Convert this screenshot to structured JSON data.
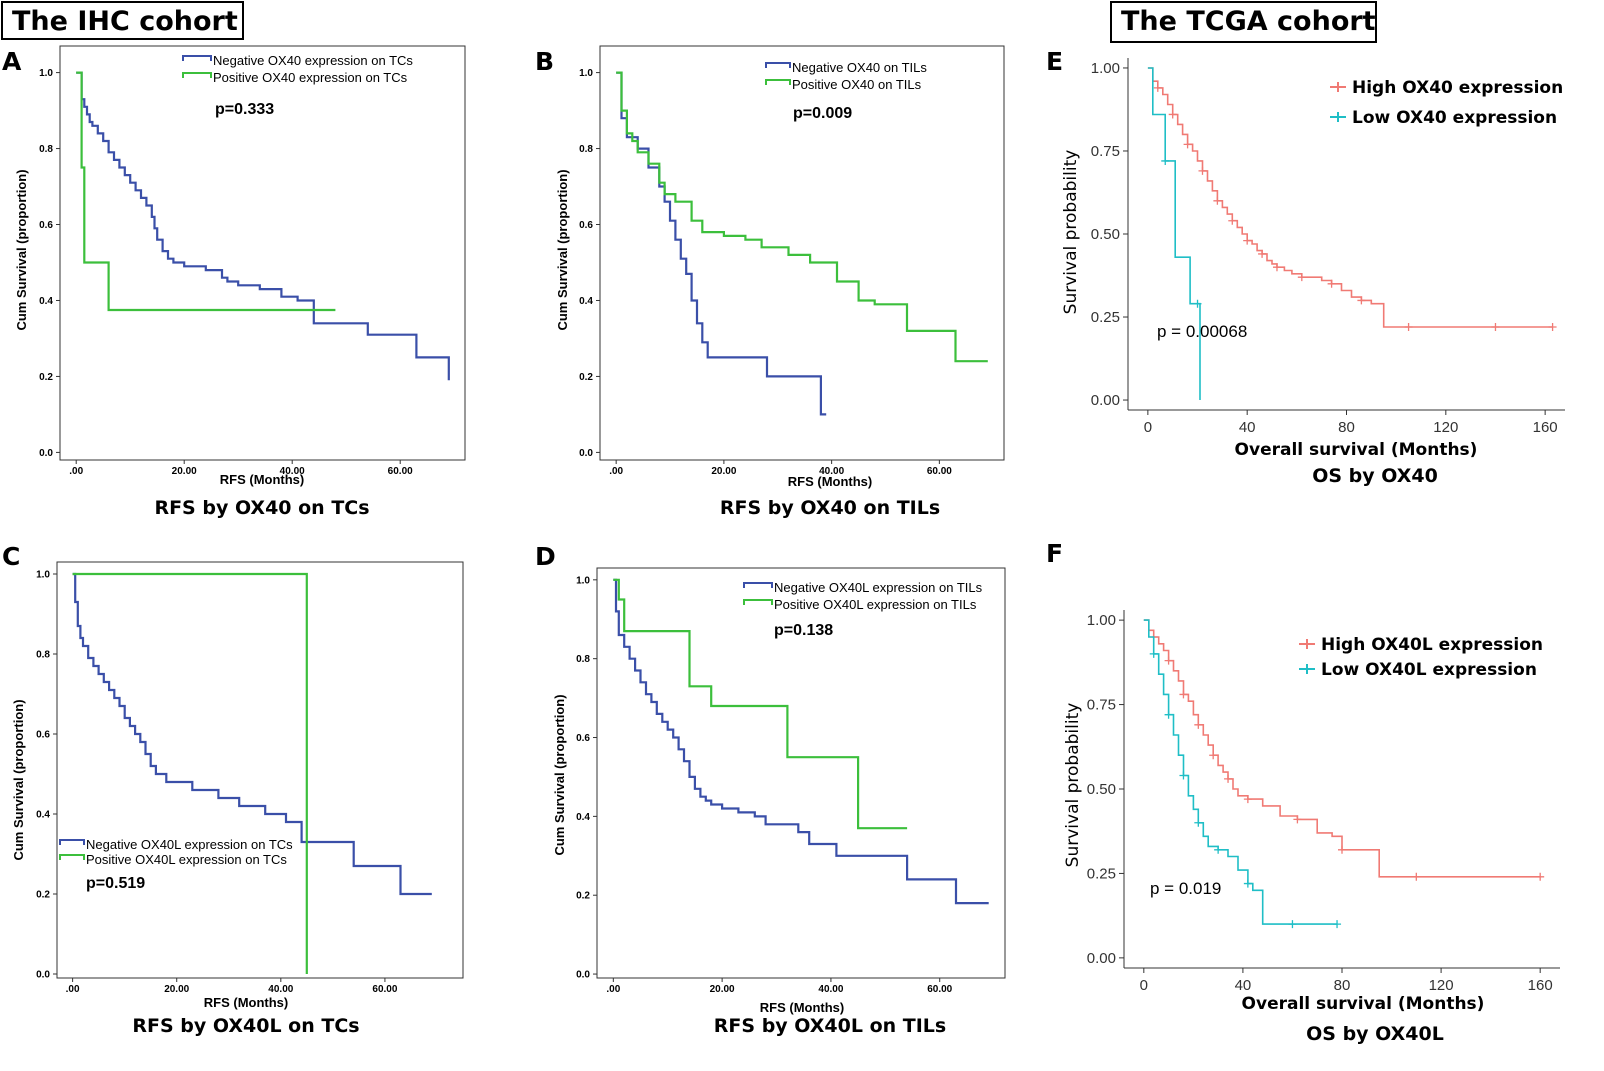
{
  "headers": {
    "ihc": "The IHC cohort",
    "tcga": "The TCGA cohort"
  },
  "colors": {
    "negative": "#3a4fa8",
    "positive": "#3cbf3c",
    "high": "#f07a74",
    "low": "#1fbec6"
  },
  "chart_data": [
    {
      "id": "A",
      "type": "line",
      "style": "spss",
      "title": "RFS by OX40 on TCs",
      "xlabel": "RFS (Months)",
      "ylabel": "Cum Survival (proportion)",
      "xlim": [
        -3,
        72
      ],
      "ylim": [
        -0.02,
        1.07
      ],
      "xticks": [
        0,
        20,
        40,
        60
      ],
      "xtick_labels": [
        ".00",
        "20.00",
        "40.00",
        "60.00"
      ],
      "yticks": [
        0,
        0.2,
        0.4,
        0.6,
        0.8,
        1.0
      ],
      "ytick_labels": [
        "0.0",
        "0.2",
        "0.4",
        "0.6",
        "0.8",
        "1.0"
      ],
      "legend_position": "top-center",
      "p_value": "p=0.333",
      "series": [
        {
          "name": "Negative OX40 expression on TCs",
          "color": "negative",
          "x": [
            0,
            1,
            1.5,
            2,
            2.5,
            3,
            4,
            5,
            6,
            7,
            8,
            9,
            10,
            11,
            12,
            13,
            14,
            14.5,
            15,
            16,
            17,
            18,
            20,
            24,
            27,
            28,
            30,
            34,
            38,
            41,
            44,
            54,
            63,
            69
          ],
          "y": [
            1.0,
            0.93,
            0.91,
            0.89,
            0.87,
            0.86,
            0.84,
            0.82,
            0.79,
            0.77,
            0.75,
            0.73,
            0.71,
            0.69,
            0.67,
            0.65,
            0.62,
            0.59,
            0.56,
            0.53,
            0.51,
            0.5,
            0.49,
            0.48,
            0.46,
            0.45,
            0.44,
            0.43,
            0.41,
            0.4,
            0.34,
            0.31,
            0.25,
            0.19
          ]
        },
        {
          "name": "Positive OX40 expression on TCs",
          "color": "positive",
          "x": [
            0,
            1,
            1.5,
            6,
            48
          ],
          "y": [
            1.0,
            0.75,
            0.5,
            0.375,
            0.375
          ]
        }
      ]
    },
    {
      "id": "B",
      "type": "line",
      "style": "spss",
      "title": "RFS by OX40 on TILs",
      "xlabel": "RFS (Months)",
      "ylabel": "Cum Survival (proportion)",
      "xlim": [
        -3,
        72
      ],
      "ylim": [
        -0.02,
        1.07
      ],
      "xticks": [
        0,
        20,
        40,
        60
      ],
      "xtick_labels": [
        ".00",
        "20.00",
        "40.00",
        "60.00"
      ],
      "yticks": [
        0,
        0.2,
        0.4,
        0.6,
        0.8,
        1.0
      ],
      "ytick_labels": [
        "0.0",
        "0.2",
        "0.4",
        "0.6",
        "0.8",
        "1.0"
      ],
      "legend_position": "top-center",
      "p_value": "p=0.009",
      "series": [
        {
          "name": "Negative OX40 on TILs",
          "color": "negative",
          "x": [
            0,
            1,
            2,
            4,
            6,
            8,
            9,
            10,
            11,
            12,
            13,
            14,
            15,
            16,
            17,
            18,
            28,
            38,
            39
          ],
          "y": [
            1.0,
            0.88,
            0.83,
            0.8,
            0.75,
            0.7,
            0.66,
            0.61,
            0.56,
            0.51,
            0.47,
            0.4,
            0.34,
            0.29,
            0.25,
            0.25,
            0.2,
            0.1,
            0.1
          ]
        },
        {
          "name": "Positive OX40 on TILs",
          "color": "positive",
          "x": [
            0,
            1,
            2,
            3,
            4,
            6,
            8,
            9,
            11,
            14,
            16,
            20,
            24,
            27,
            32,
            36,
            41,
            45,
            48,
            54,
            63,
            69
          ],
          "y": [
            1.0,
            0.9,
            0.84,
            0.82,
            0.79,
            0.76,
            0.71,
            0.68,
            0.66,
            0.61,
            0.58,
            0.57,
            0.56,
            0.54,
            0.52,
            0.5,
            0.45,
            0.4,
            0.39,
            0.32,
            0.24,
            0.24
          ]
        }
      ]
    },
    {
      "id": "C",
      "type": "line",
      "style": "spss",
      "title": "RFS by OX40L on TCs",
      "xlabel": "RFS (Months)",
      "ylabel": "Cum Survival (proportion)",
      "xlim": [
        -3,
        75
      ],
      "ylim": [
        -0.01,
        1.03
      ],
      "xticks": [
        0,
        20,
        40,
        60
      ],
      "xtick_labels": [
        ".00",
        "20.00",
        "40.00",
        "60.00"
      ],
      "yticks": [
        0,
        0.2,
        0.4,
        0.6,
        0.8,
        1.0
      ],
      "ytick_labels": [
        "0.0",
        "0.2",
        "0.4",
        "0.6",
        "0.8",
        "1.0"
      ],
      "legend_position": "bottom-left",
      "p_value": "p=0.519",
      "series": [
        {
          "name": "Negative OX40L expression on TCs",
          "color": "negative",
          "x": [
            0,
            0.5,
            1,
            1.5,
            2,
            3,
            4,
            5,
            6,
            7,
            8,
            9,
            10,
            11,
            12,
            13,
            14,
            15,
            16,
            18,
            23,
            28,
            32,
            37,
            41,
            44,
            54,
            63,
            69
          ],
          "y": [
            1.0,
            0.93,
            0.87,
            0.84,
            0.82,
            0.79,
            0.77,
            0.75,
            0.73,
            0.71,
            0.69,
            0.67,
            0.64,
            0.62,
            0.6,
            0.58,
            0.55,
            0.52,
            0.5,
            0.48,
            0.46,
            0.44,
            0.42,
            0.4,
            0.38,
            0.33,
            0.27,
            0.2,
            0.2
          ]
        },
        {
          "name": "Positive OX40L expression on TCs",
          "color": "positive",
          "x": [
            0,
            45,
            45
          ],
          "y": [
            1.0,
            1.0,
            0.0
          ]
        }
      ]
    },
    {
      "id": "D",
      "type": "line",
      "style": "spss",
      "title": "RFS by OX40L on TILs",
      "xlabel": "RFS (Months)",
      "ylabel": "Cum Survival (proportion)",
      "xlim": [
        -3,
        72
      ],
      "ylim": [
        -0.01,
        1.03
      ],
      "xticks": [
        0,
        20,
        40,
        60
      ],
      "xtick_labels": [
        ".00",
        "20.00",
        "40.00",
        "60.00"
      ],
      "yticks": [
        0,
        0.2,
        0.4,
        0.6,
        0.8,
        1.0
      ],
      "ytick_labels": [
        "0.0",
        "0.2",
        "0.4",
        "0.6",
        "0.8",
        "1.0"
      ],
      "legend_position": "top-right",
      "p_value": "p=0.138",
      "series": [
        {
          "name": "Negative OX40L expression on TILs",
          "color": "negative",
          "x": [
            0,
            0.5,
            1,
            2,
            3,
            4,
            5,
            6,
            7,
            8,
            9,
            10,
            11,
            12,
            13,
            14,
            15,
            16,
            17,
            18,
            20,
            23,
            26,
            28,
            32,
            34,
            36,
            41,
            45,
            48,
            54,
            63,
            69
          ],
          "y": [
            1.0,
            0.92,
            0.86,
            0.83,
            0.8,
            0.77,
            0.74,
            0.71,
            0.69,
            0.66,
            0.64,
            0.62,
            0.6,
            0.57,
            0.54,
            0.5,
            0.47,
            0.45,
            0.44,
            0.43,
            0.42,
            0.41,
            0.4,
            0.38,
            0.38,
            0.36,
            0.33,
            0.3,
            0.3,
            0.3,
            0.24,
            0.18,
            0.18
          ]
        },
        {
          "name": "Positive OX40L expression on TILs",
          "color": "positive",
          "x": [
            0,
            1,
            2,
            8,
            14,
            18,
            32,
            45,
            54
          ],
          "y": [
            1.0,
            0.95,
            0.87,
            0.87,
            0.73,
            0.68,
            0.55,
            0.37,
            0.37
          ]
        }
      ]
    },
    {
      "id": "E",
      "type": "line",
      "style": "r",
      "title": "OS by OX40",
      "xlabel": "Overall survival (Months)",
      "ylabel": "Survival probability",
      "xlim": [
        -8,
        168
      ],
      "ylim": [
        -0.03,
        1.03
      ],
      "xticks": [
        0,
        40,
        80,
        120,
        160
      ],
      "xtick_labels": [
        "0",
        "40",
        "80",
        "120",
        "160"
      ],
      "yticks": [
        0,
        0.25,
        0.5,
        0.75,
        1.0
      ],
      "ytick_labels": [
        "0.00",
        "0.25",
        "0.50",
        "0.75",
        "1.00"
      ],
      "legend_position": "top-right",
      "p_value": "p = 0.00068",
      "series": [
        {
          "name": "High OX40 expression",
          "color": "high",
          "x": [
            0,
            2,
            4,
            6,
            8,
            10,
            12,
            14,
            16,
            18,
            20,
            22,
            24,
            26,
            28,
            30,
            32,
            34,
            36,
            38,
            40,
            42,
            44,
            46,
            48,
            50,
            52,
            55,
            58,
            62,
            66,
            70,
            74,
            78,
            82,
            86,
            90,
            95,
            105,
            115,
            125,
            140,
            150,
            163
          ],
          "y": [
            1.0,
            0.96,
            0.94,
            0.92,
            0.89,
            0.86,
            0.83,
            0.8,
            0.77,
            0.75,
            0.72,
            0.69,
            0.66,
            0.63,
            0.6,
            0.58,
            0.56,
            0.54,
            0.52,
            0.5,
            0.48,
            0.47,
            0.45,
            0.44,
            0.42,
            0.41,
            0.4,
            0.39,
            0.38,
            0.37,
            0.37,
            0.36,
            0.35,
            0.33,
            0.31,
            0.3,
            0.29,
            0.22,
            0.22,
            0.22,
            0.22,
            0.22,
            0.22,
            0.22
          ]
        },
        {
          "name": "Low OX40 expression",
          "color": "low",
          "x": [
            0,
            2,
            7,
            11,
            17,
            20,
            21
          ],
          "y": [
            1.0,
            0.86,
            0.72,
            0.43,
            0.29,
            0.29,
            0.0
          ]
        }
      ]
    },
    {
      "id": "F",
      "type": "line",
      "style": "r",
      "title": "OS by OX40L",
      "xlabel": "Overall survival (Months)",
      "ylabel": "Survival probability",
      "xlim": [
        -8,
        168
      ],
      "ylim": [
        -0.03,
        1.03
      ],
      "xticks": [
        0,
        40,
        80,
        120,
        160
      ],
      "xtick_labels": [
        "0",
        "40",
        "80",
        "120",
        "160"
      ],
      "yticks": [
        0,
        0.25,
        0.5,
        0.75,
        1.0
      ],
      "ytick_labels": [
        "0.00",
        "0.25",
        "0.50",
        "0.75",
        "1.00"
      ],
      "legend_position": "top-right",
      "p_value": "p = 0.019",
      "series": [
        {
          "name": "High OX40L expression",
          "color": "high",
          "x": [
            0,
            2,
            4,
            6,
            8,
            10,
            12,
            14,
            16,
            18,
            20,
            22,
            24,
            26,
            28,
            30,
            32,
            34,
            36,
            38,
            42,
            48,
            55,
            62,
            70,
            76,
            80,
            88,
            95,
            110,
            130,
            160
          ],
          "y": [
            1.0,
            0.97,
            0.95,
            0.93,
            0.91,
            0.88,
            0.85,
            0.82,
            0.78,
            0.76,
            0.72,
            0.69,
            0.66,
            0.63,
            0.6,
            0.57,
            0.55,
            0.53,
            0.5,
            0.48,
            0.47,
            0.45,
            0.42,
            0.41,
            0.37,
            0.36,
            0.32,
            0.32,
            0.24,
            0.24,
            0.24,
            0.24
          ]
        },
        {
          "name": "Low OX40L expression",
          "color": "low",
          "x": [
            0,
            2,
            4,
            6,
            8,
            10,
            12,
            14,
            16,
            18,
            20,
            22,
            24,
            26,
            30,
            34,
            38,
            42,
            44,
            48,
            60,
            78
          ],
          "y": [
            1.0,
            0.95,
            0.9,
            0.84,
            0.78,
            0.72,
            0.66,
            0.6,
            0.54,
            0.48,
            0.44,
            0.4,
            0.36,
            0.33,
            0.32,
            0.3,
            0.26,
            0.22,
            0.2,
            0.1,
            0.1,
            0.1
          ]
        }
      ]
    }
  ]
}
